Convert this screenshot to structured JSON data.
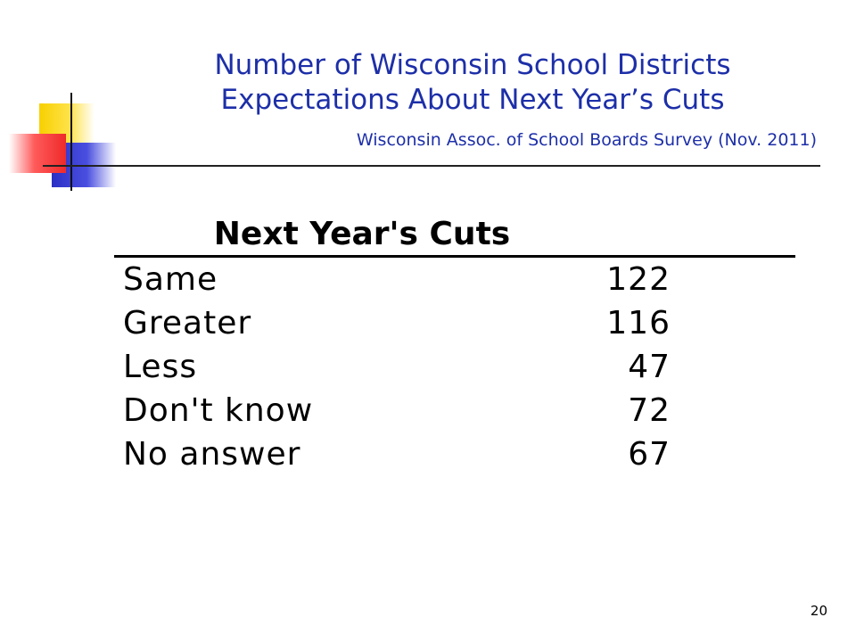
{
  "slide": {
    "title_line1": "Number of Wisconsin School Districts",
    "title_line2": "Expectations About Next Year’s Cuts",
    "subtitle": "Wisconsin Assoc. of School Boards Survey (Nov. 2011)",
    "page_number": "20"
  },
  "table": {
    "header": "Next Year's Cuts",
    "rows": [
      {
        "label": "Same",
        "value": "122"
      },
      {
        "label": "Greater",
        "value": "116"
      },
      {
        "label": "Less",
        "value": "47"
      },
      {
        "label": "Don't know",
        "value": "72"
      },
      {
        "label": "No answer",
        "value": "67"
      }
    ]
  },
  "colors": {
    "title": "#1d2fa8",
    "accent_yellow": "#f7d000",
    "accent_blue": "#2b2fc4",
    "accent_red": "#ee2a2a"
  }
}
